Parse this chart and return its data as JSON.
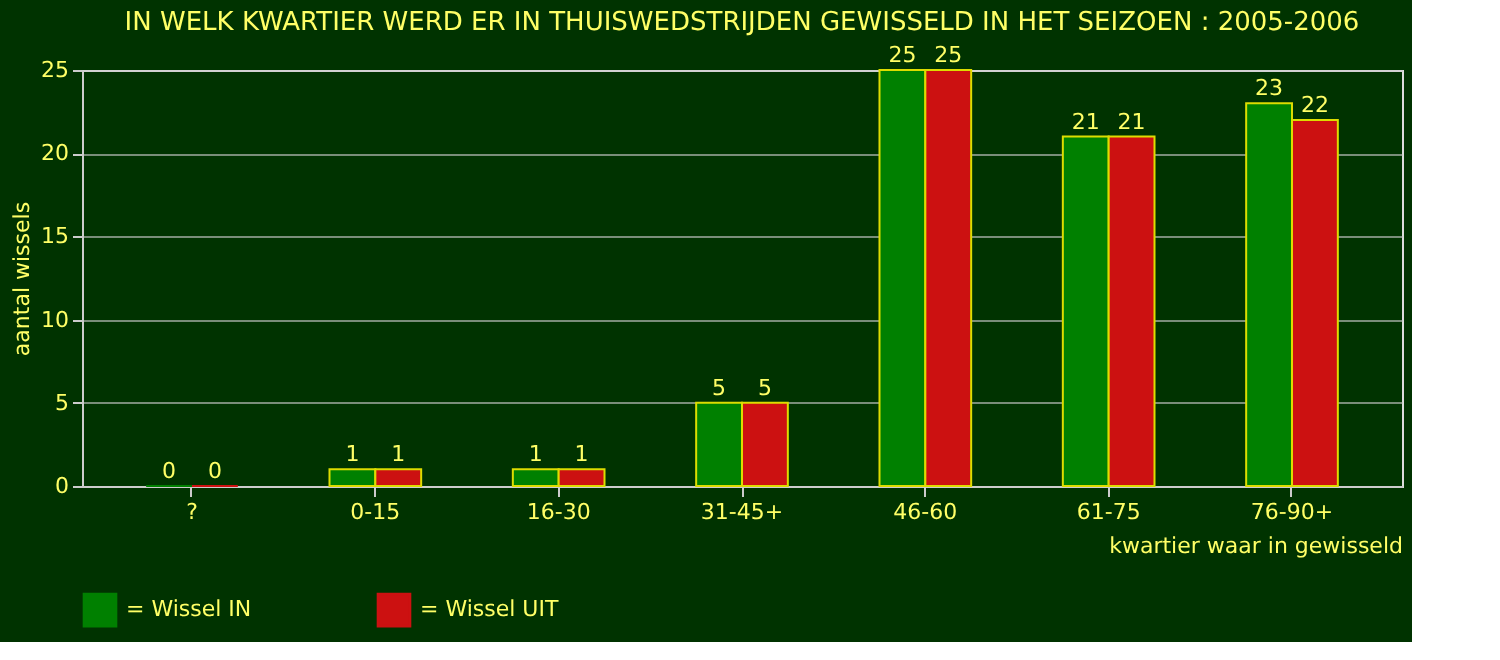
{
  "chart_data": {
    "type": "bar",
    "title": "IN WELK KWARTIER WERD ER IN THUISWEDSTRIJDEN GEWISSELD IN HET SEIZOEN : 2005-2006",
    "xlabel": "kwartier waar in gewisseld",
    "ylabel": "aantal wissels",
    "categories": [
      "?",
      "0-15",
      "16-30",
      "31-45+",
      "46-60",
      "61-75",
      "76-90+"
    ],
    "series": [
      {
        "name": "= Wissel IN",
        "color": "#008000",
        "values": [
          0,
          1,
          1,
          5,
          25,
          21,
          23
        ]
      },
      {
        "name": "= Wissel UIT",
        "color": "#cc1111",
        "values": [
          0,
          1,
          1,
          5,
          25,
          21,
          22
        ]
      }
    ],
    "ylim": [
      0,
      25
    ],
    "yticks": [
      0,
      5,
      10,
      15,
      20,
      25
    ],
    "grid": "y",
    "legend": "bottom",
    "data_labels": true
  }
}
